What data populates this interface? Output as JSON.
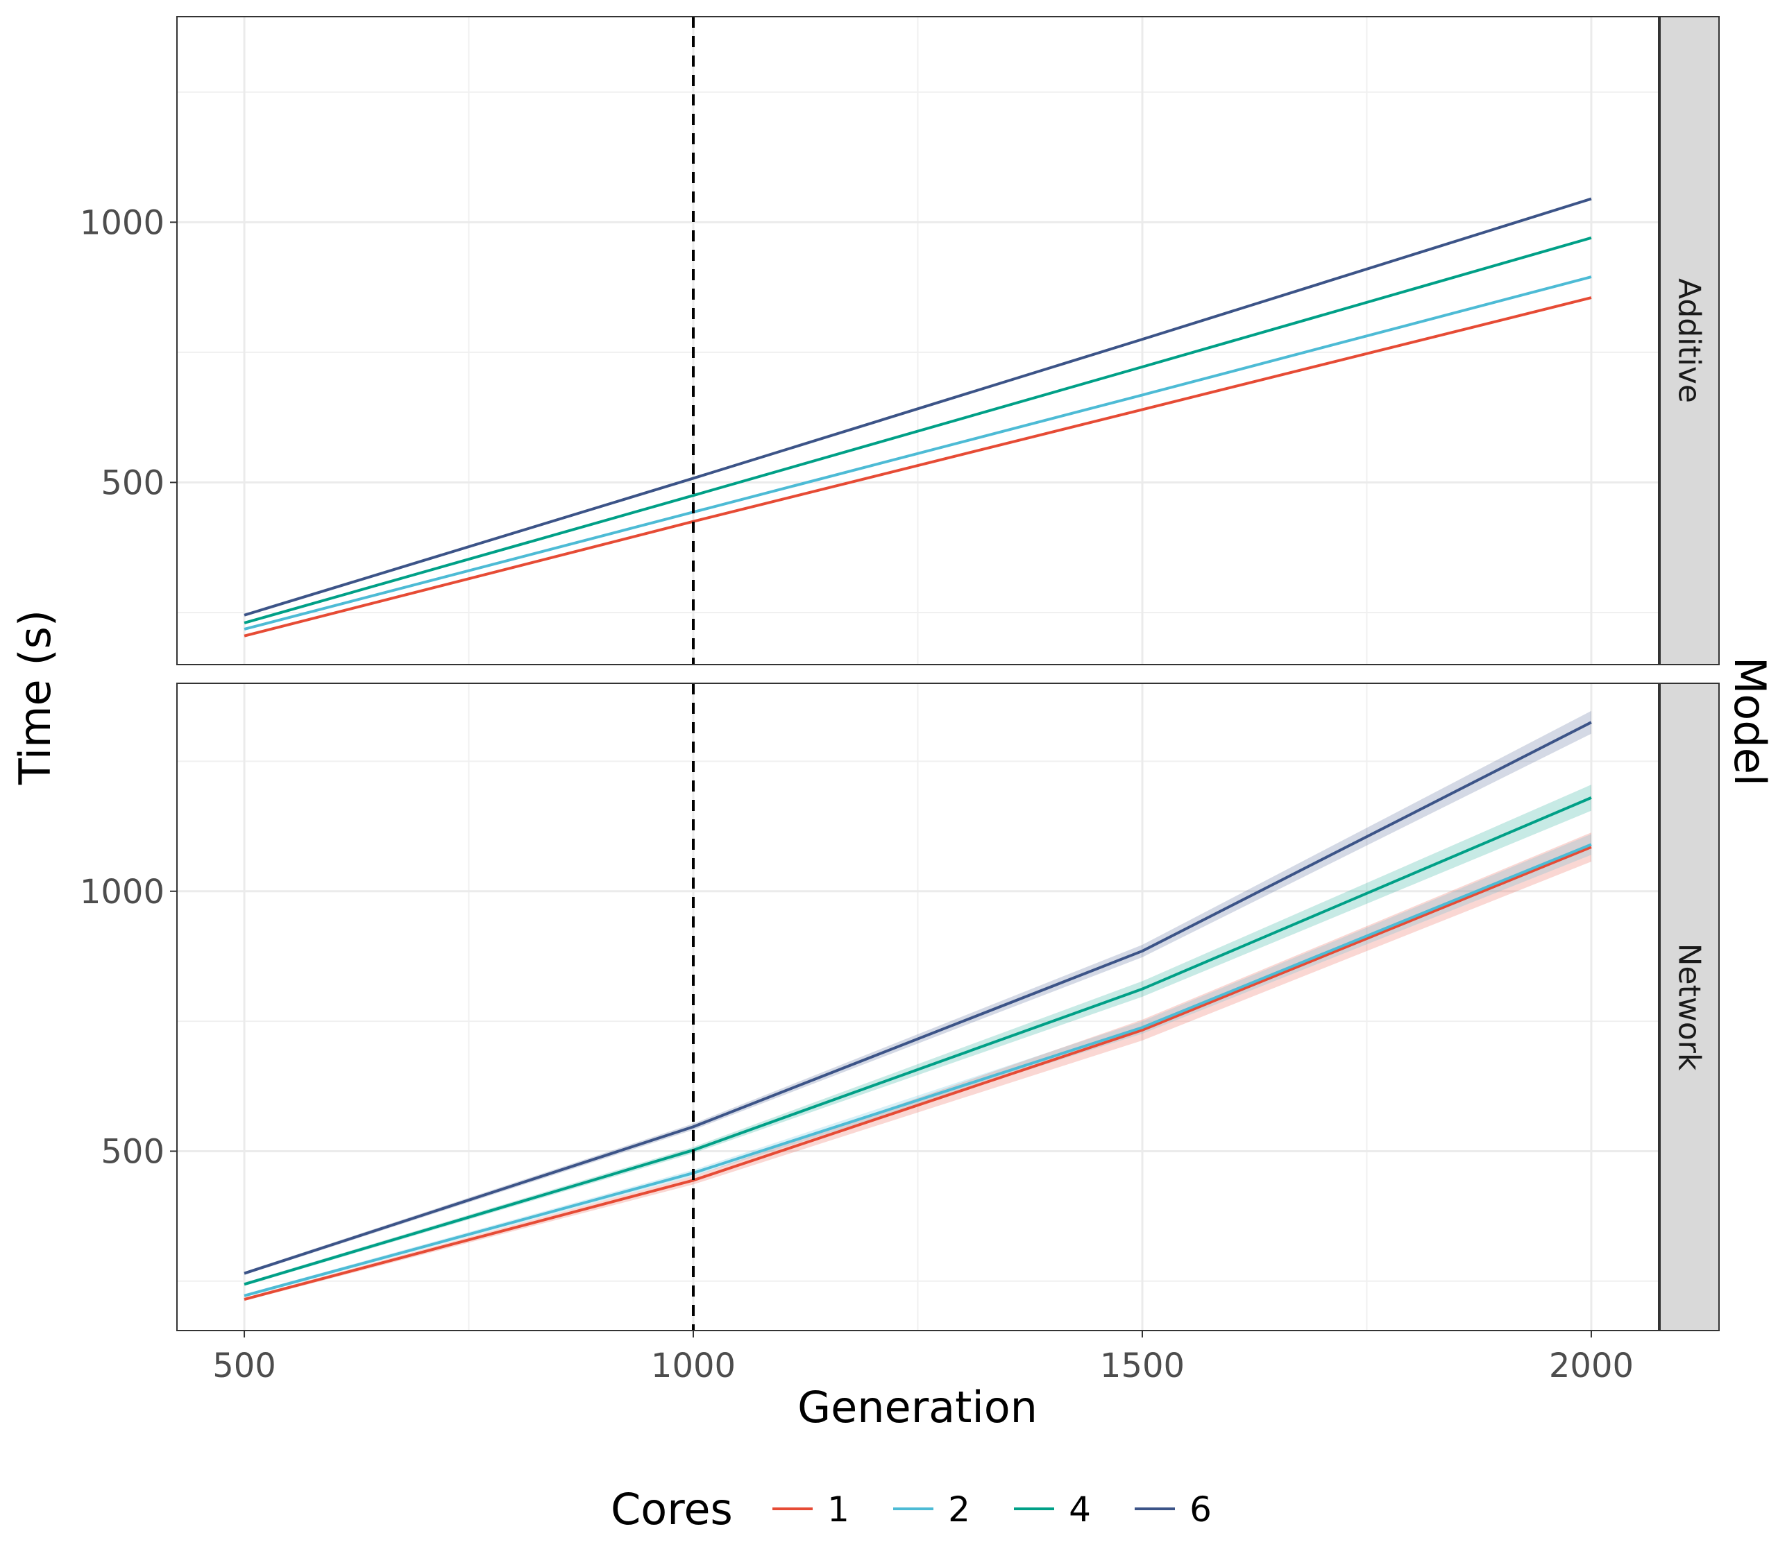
{
  "chart_data": {
    "type": "line",
    "xlabel": "Generation",
    "ylabel": "Time (s)",
    "facet_label": "Model",
    "xlim": [
      425,
      2075
    ],
    "x_ticks": [
      500,
      1000,
      1500,
      2000
    ],
    "x_tick_labels": [
      "500",
      "1000",
      "1500",
      "2000"
    ],
    "vline_x": 1000,
    "grid": true,
    "legend": {
      "title": "Cores",
      "position": "bottom",
      "entries": [
        "1",
        "2",
        "4",
        "6"
      ]
    },
    "colors": {
      "1": "#e64b35",
      "2": "#4dbbd5",
      "4": "#00a087",
      "6": "#3c5488"
    },
    "x": [
      500,
      1000,
      1500,
      2000
    ],
    "panels": [
      {
        "label": "Additive",
        "ylim": [
          150,
          1395
        ],
        "y_ticks": [
          500,
          1000
        ],
        "y_tick_labels": [
          "500",
          "1000"
        ],
        "series": [
          {
            "name": "1",
            "values": [
              205,
              425,
              640,
              855
            ],
            "ci": [
              0,
              0,
              0,
              0
            ]
          },
          {
            "name": "2",
            "values": [
              218,
              443,
              668,
              895
            ],
            "ci": [
              0,
              0,
              0,
              0
            ]
          },
          {
            "name": "4",
            "values": [
              230,
              475,
              722,
              970
            ],
            "ci": [
              0,
              0,
              0,
              0
            ]
          },
          {
            "name": "6",
            "values": [
              245,
              508,
              775,
              1045
            ],
            "ci": [
              0,
              0,
              0,
              0
            ]
          }
        ]
      },
      {
        "label": "Network",
        "ylim": [
          155,
          1400
        ],
        "y_ticks": [
          500,
          1000
        ],
        "y_tick_labels": [
          "500",
          "1000"
        ],
        "series": [
          {
            "name": "1",
            "values": [
              215,
              444,
              733,
              1085
            ],
            "ci": [
              3,
              8,
              20,
              28
            ]
          },
          {
            "name": "2",
            "values": [
              222,
              458,
              738,
              1090
            ],
            "ci": [
              3,
              6,
              12,
              20
            ]
          },
          {
            "name": "4",
            "values": [
              244,
              502,
              812,
              1180
            ],
            "ci": [
              3,
              6,
              15,
              25
            ]
          },
          {
            "name": "6",
            "values": [
              265,
              547,
              885,
              1325
            ],
            "ci": [
              3,
              6,
              12,
              22
            ]
          }
        ]
      }
    ]
  }
}
